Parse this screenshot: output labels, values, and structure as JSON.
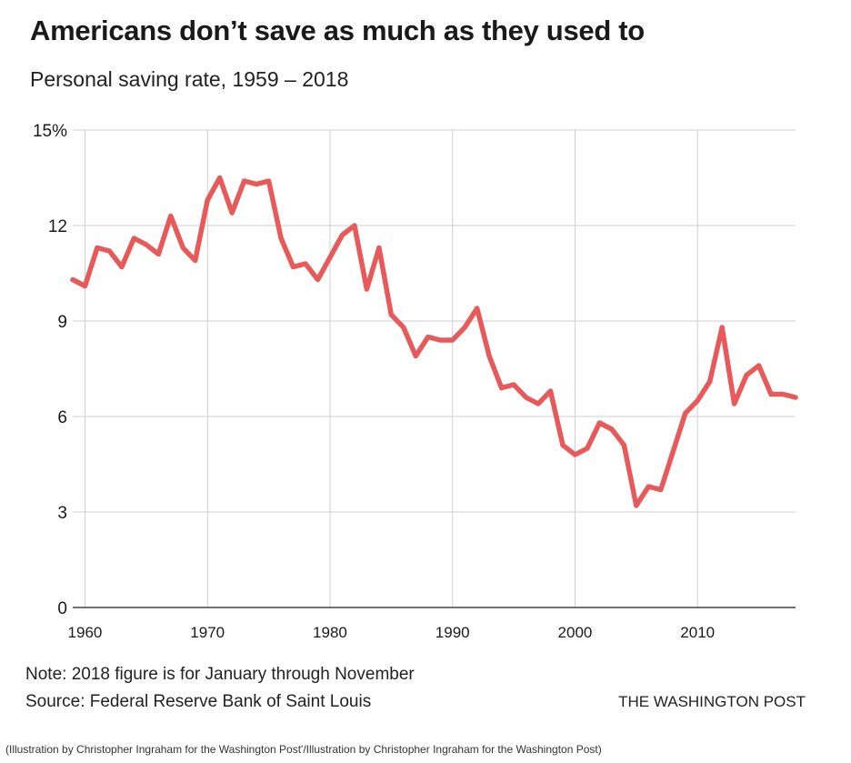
{
  "chart_data": {
    "type": "line",
    "title": "Americans don’t save as much as they used to",
    "subtitle": "Personal saving rate, 1959 – 2018",
    "xlabel": "",
    "ylabel": "",
    "xlim": [
      1959,
      2018
    ],
    "ylim": [
      0,
      15
    ],
    "x_ticks": [
      1960,
      1970,
      1980,
      1990,
      2000,
      2010
    ],
    "x_tick_labels": [
      "1960",
      "1970",
      "1980",
      "1990",
      "2000",
      "2010"
    ],
    "y_ticks": [
      0,
      3,
      6,
      9,
      12,
      15
    ],
    "y_tick_labels": [
      "0",
      "3",
      "6",
      "9",
      "12",
      "15%"
    ],
    "grid": true,
    "series": [
      {
        "name": "Personal saving rate",
        "color": "#e85a5a",
        "x": [
          1959,
          1960,
          1961,
          1962,
          1963,
          1964,
          1965,
          1966,
          1967,
          1968,
          1969,
          1970,
          1971,
          1972,
          1973,
          1974,
          1975,
          1976,
          1977,
          1978,
          1979,
          1980,
          1981,
          1982,
          1983,
          1984,
          1985,
          1986,
          1987,
          1988,
          1989,
          1990,
          1991,
          1992,
          1993,
          1994,
          1995,
          1996,
          1997,
          1998,
          1999,
          2000,
          2001,
          2002,
          2003,
          2004,
          2005,
          2006,
          2007,
          2008,
          2009,
          2010,
          2011,
          2012,
          2013,
          2014,
          2015,
          2016,
          2017,
          2018
        ],
        "values": [
          10.3,
          10.1,
          11.3,
          11.2,
          10.7,
          11.6,
          11.4,
          11.1,
          12.3,
          11.3,
          10.9,
          12.8,
          13.5,
          12.4,
          13.4,
          13.3,
          13.4,
          11.6,
          10.7,
          10.8,
          10.3,
          11.0,
          11.7,
          12.0,
          10.0,
          11.3,
          9.2,
          8.8,
          7.9,
          8.5,
          8.4,
          8.4,
          8.8,
          9.4,
          7.9,
          6.9,
          7.0,
          6.6,
          6.4,
          6.8,
          5.1,
          4.8,
          5.0,
          5.8,
          5.6,
          5.1,
          3.2,
          3.8,
          3.7,
          4.9,
          6.1,
          6.5,
          7.1,
          8.8,
          6.4,
          7.3,
          7.6,
          6.7,
          6.7,
          6.6
        ]
      }
    ],
    "notes": {
      "note": "Note: 2018 figure is for January through November",
      "source": "Source: Federal Reserve Bank of Saint Louis"
    }
  },
  "branding": {
    "logo_text": "THE WASHINGTON POST",
    "credit": "(Illustration by Christopher Ingraham for the Washington Post'/Illustration by Christopher Ingraham for the Washington Post)"
  },
  "colors": {
    "line": "#e85a5a",
    "grid": "#cfcfcf",
    "axis": "#444444",
    "text": "#1a1a1a"
  }
}
